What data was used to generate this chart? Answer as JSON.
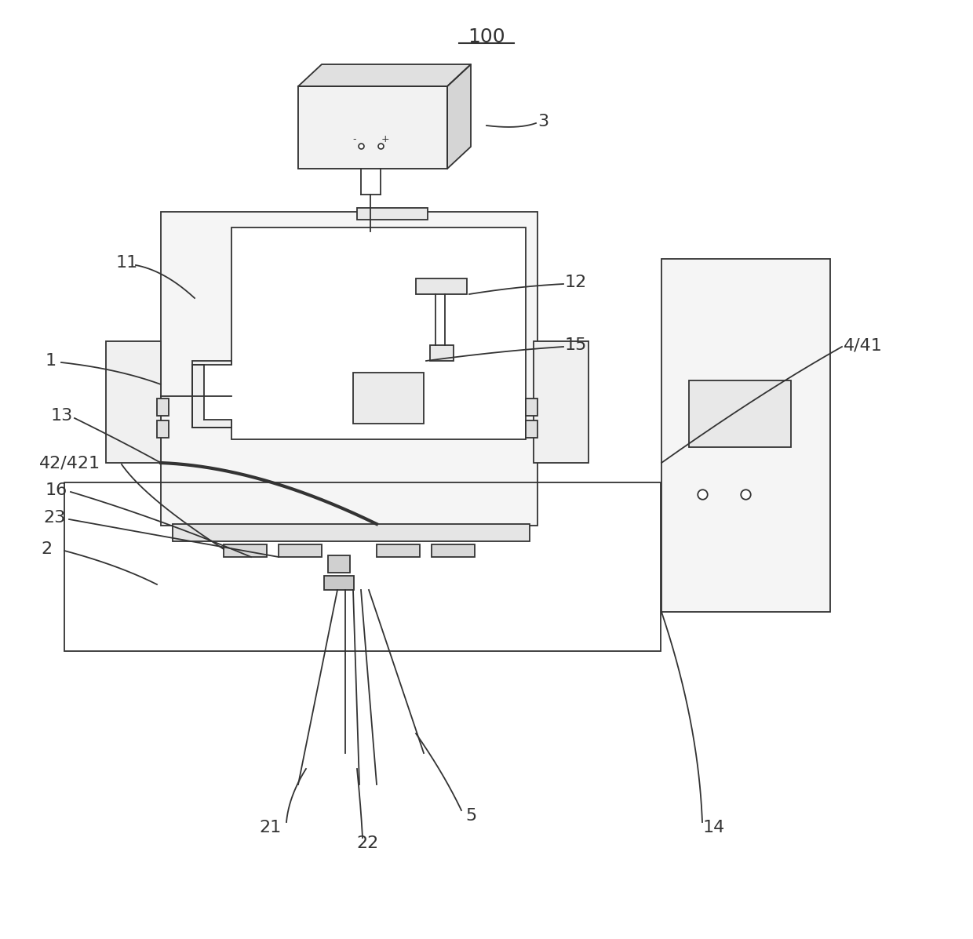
{
  "bg_color": "#ffffff",
  "line_color": "#333333",
  "lw": 1.3,
  "thin": 0.9
}
